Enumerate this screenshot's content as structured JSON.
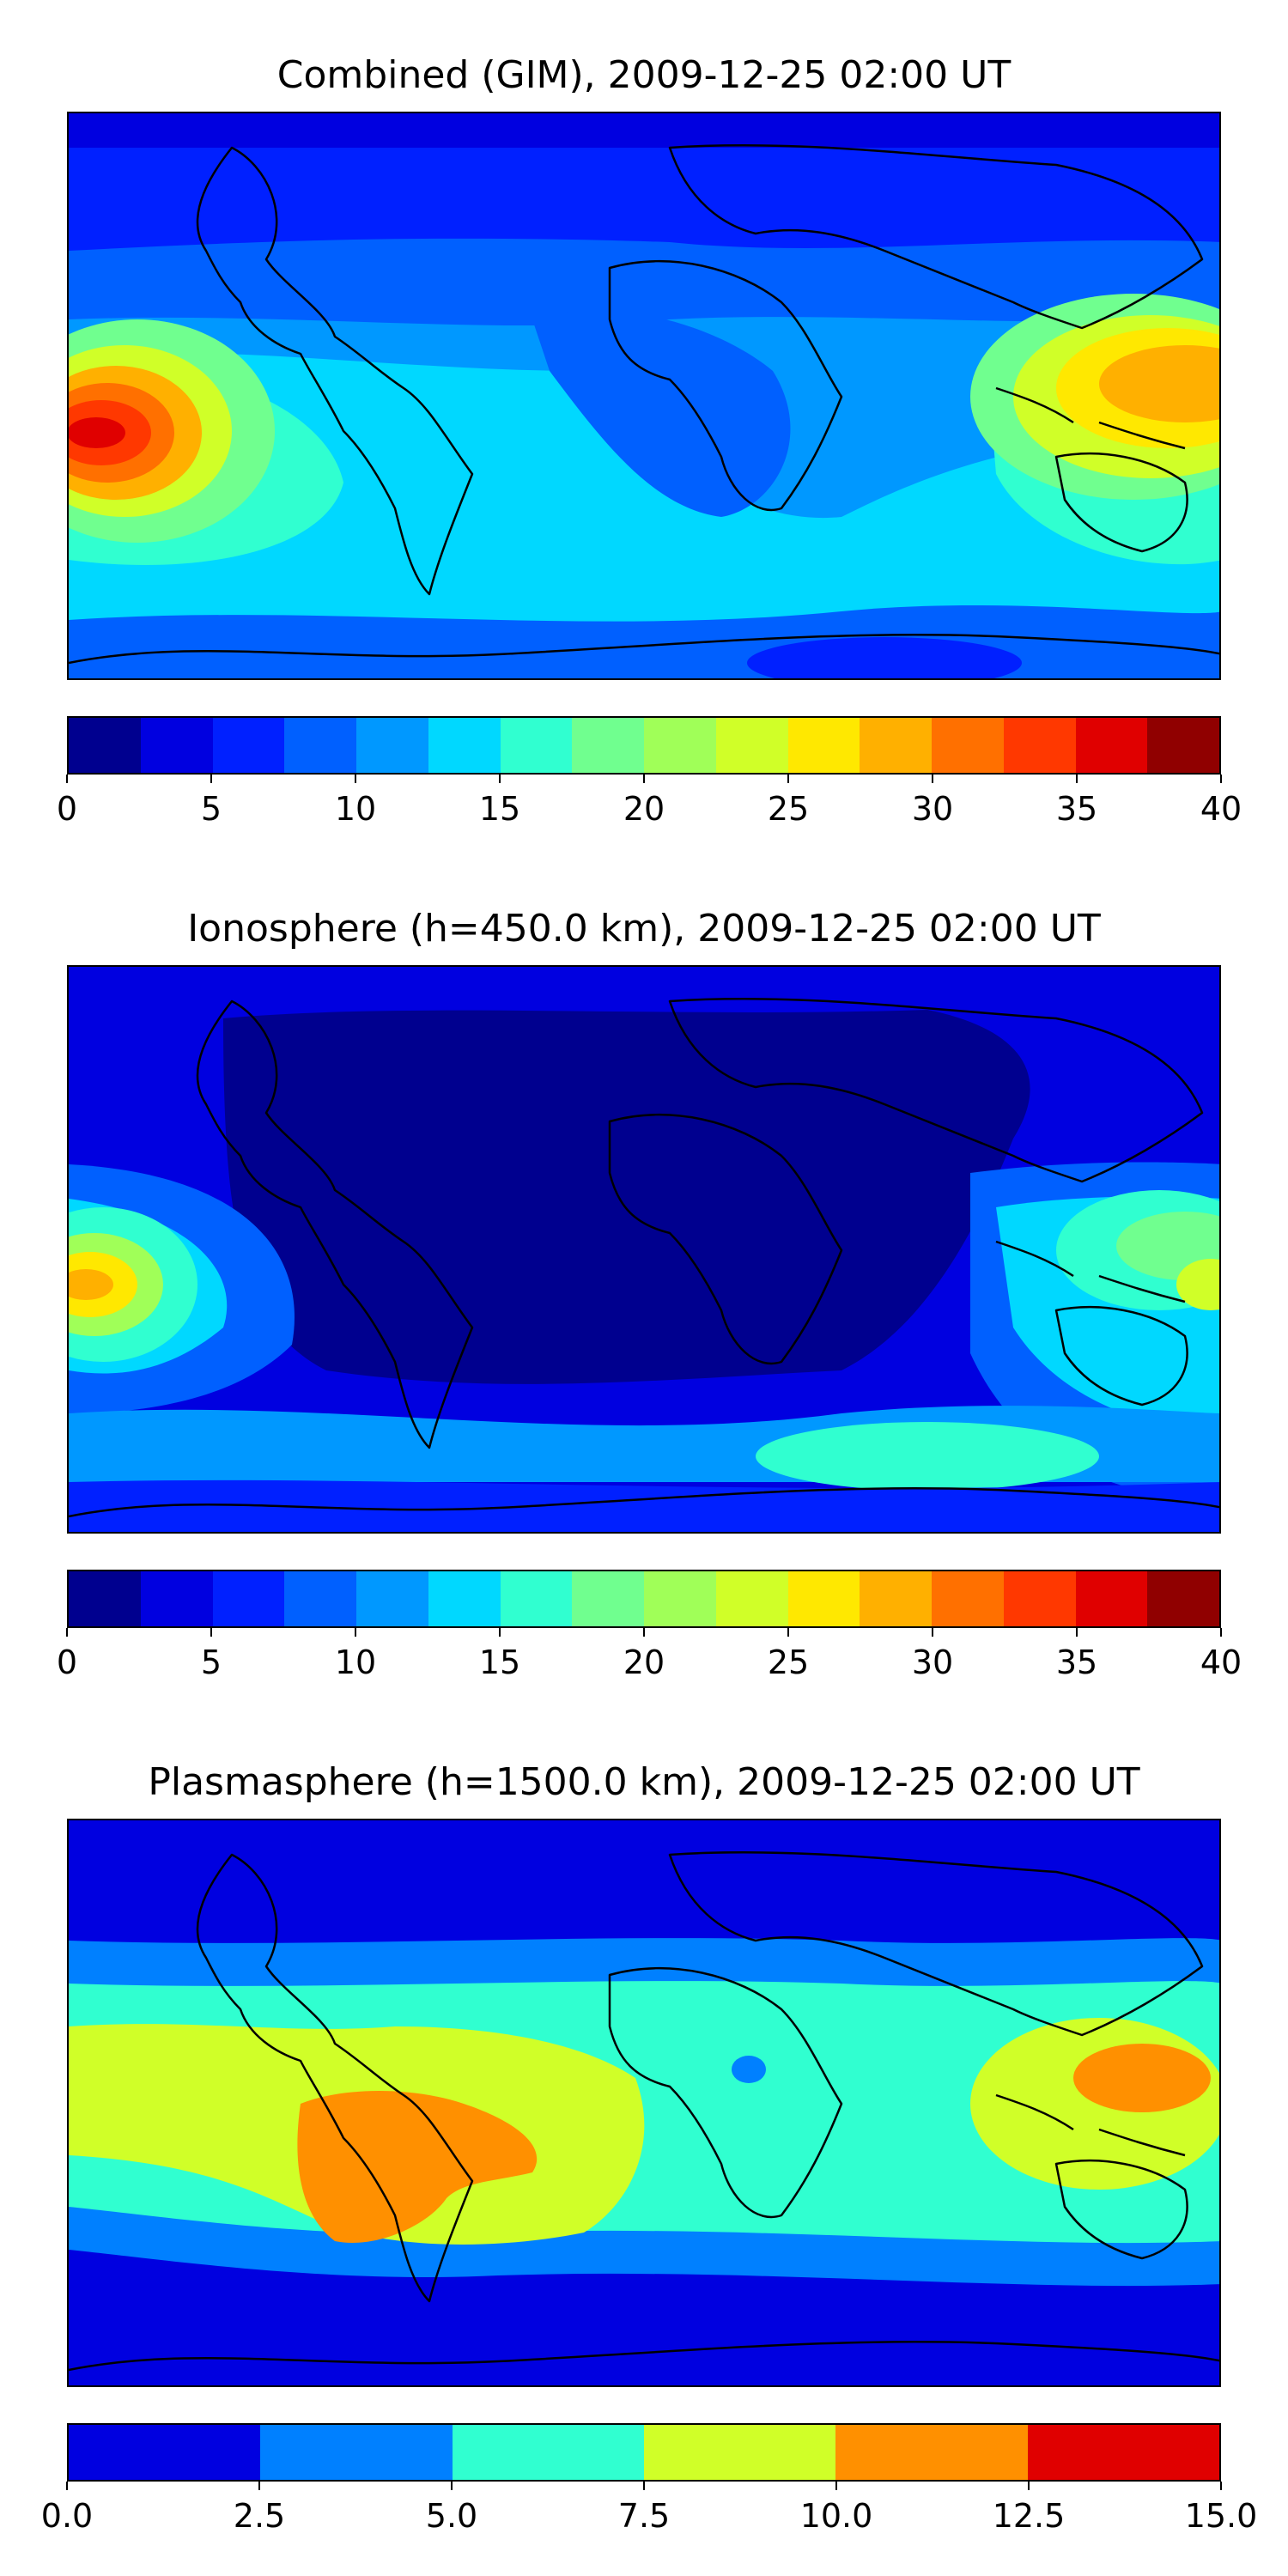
{
  "panels": [
    {
      "title": "Combined (GIM), 2009-12-25 02:00 UT",
      "colorbar": {
        "colors": [
          "#00008f",
          "#0000e0",
          "#0020ff",
          "#0060ff",
          "#0098ff",
          "#00d8ff",
          "#30ffd0",
          "#70ff8f",
          "#a0ff58",
          "#d0ff28",
          "#ffe800",
          "#ffb000",
          "#ff7000",
          "#ff3800",
          "#e00000",
          "#900000"
        ],
        "ticks": [
          "0",
          "5",
          "10",
          "15",
          "20",
          "25",
          "30",
          "35",
          "40"
        ]
      }
    },
    {
      "title": "Ionosphere  (h=450.0 km), 2009-12-25 02:00 UT",
      "colorbar": {
        "colors": [
          "#00008f",
          "#0000e0",
          "#0020ff",
          "#0060ff",
          "#0098ff",
          "#00d8ff",
          "#30ffd0",
          "#70ff8f",
          "#a0ff58",
          "#d0ff28",
          "#ffe800",
          "#ffb000",
          "#ff7000",
          "#ff3800",
          "#e00000",
          "#900000"
        ],
        "ticks": [
          "0",
          "5",
          "10",
          "15",
          "20",
          "25",
          "30",
          "35",
          "40"
        ]
      }
    },
    {
      "title": "Plasmasphere (h=1500.0 km), 2009-12-25 02:00 UT",
      "colorbar": {
        "colors": [
          "#0000e0",
          "#0080ff",
          "#30ffd0",
          "#d0ff28",
          "#ff9000",
          "#e00000"
        ],
        "ticks": [
          "0.0",
          "2.5",
          "5.0",
          "7.5",
          "10.0",
          "12.5",
          "15.0"
        ]
      }
    }
  ]
}
